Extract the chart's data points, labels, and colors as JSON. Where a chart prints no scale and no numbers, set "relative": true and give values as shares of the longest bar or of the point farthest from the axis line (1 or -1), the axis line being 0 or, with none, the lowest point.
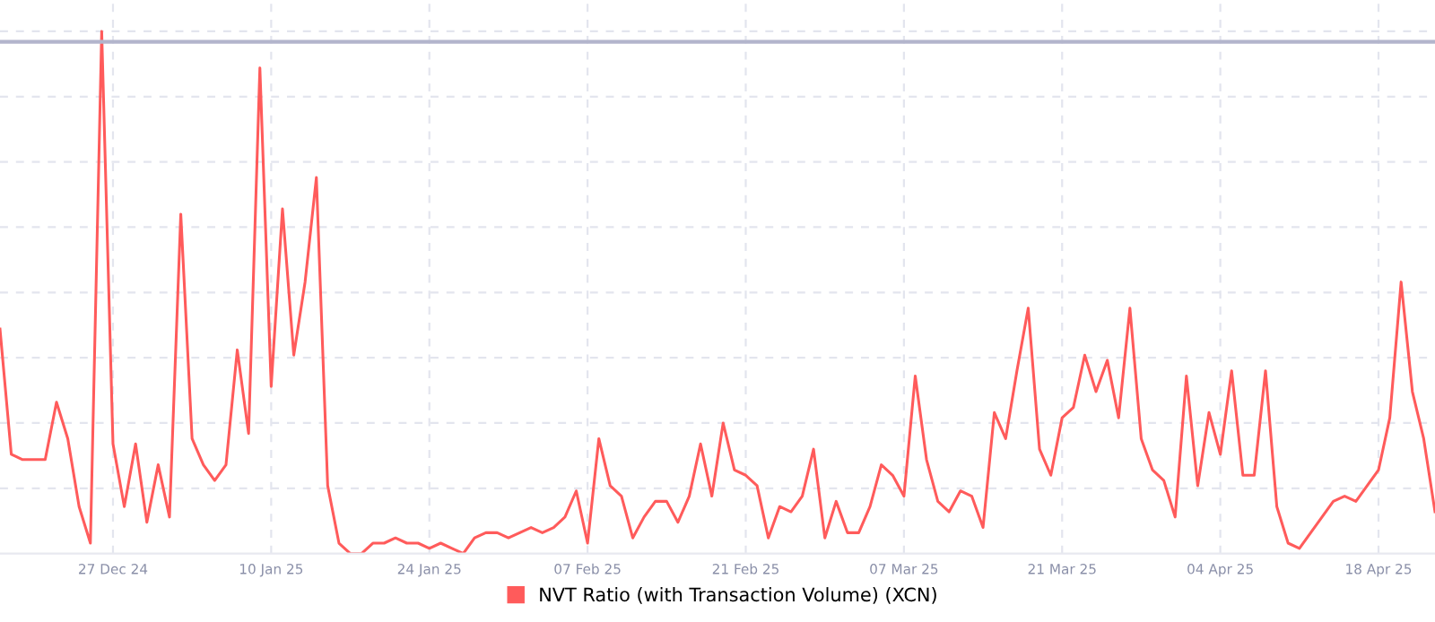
{
  "chart_data": {
    "type": "line",
    "relative": true,
    "grid": true,
    "legend": "bottom",
    "marker": "none",
    "line_style": "solid",
    "x": [
      "2024-12-17",
      "2024-12-18",
      "2024-12-19",
      "2024-12-20",
      "2024-12-21",
      "2024-12-22",
      "2024-12-23",
      "2024-12-24",
      "2024-12-25",
      "2024-12-26",
      "2024-12-27",
      "2024-12-28",
      "2024-12-29",
      "2024-12-30",
      "2024-12-31",
      "2025-01-01",
      "2025-01-02",
      "2025-01-03",
      "2025-01-04",
      "2025-01-05",
      "2025-01-06",
      "2025-01-07",
      "2025-01-08",
      "2025-01-09",
      "2025-01-10",
      "2025-01-11",
      "2025-01-12",
      "2025-01-13",
      "2025-01-14",
      "2025-01-15",
      "2025-01-16",
      "2025-01-17",
      "2025-01-18",
      "2025-01-19",
      "2025-01-20",
      "2025-01-21",
      "2025-01-22",
      "2025-01-23",
      "2025-01-24",
      "2025-01-25",
      "2025-01-26",
      "2025-01-27",
      "2025-01-28",
      "2025-01-29",
      "2025-01-30",
      "2025-01-31",
      "2025-02-01",
      "2025-02-02",
      "2025-02-03",
      "2025-02-04",
      "2025-02-05",
      "2025-02-06",
      "2025-02-07",
      "2025-02-08",
      "2025-02-09",
      "2025-02-10",
      "2025-02-11",
      "2025-02-12",
      "2025-02-13",
      "2025-02-14",
      "2025-02-15",
      "2025-02-16",
      "2025-02-17",
      "2025-02-18",
      "2025-02-19",
      "2025-02-20",
      "2025-02-21",
      "2025-02-22",
      "2025-02-23",
      "2025-02-24",
      "2025-02-25",
      "2025-02-26",
      "2025-02-27",
      "2025-02-28",
      "2025-03-01",
      "2025-03-02",
      "2025-03-03",
      "2025-03-04",
      "2025-03-05",
      "2025-03-06",
      "2025-03-07",
      "2025-03-08",
      "2025-03-09",
      "2025-03-10",
      "2025-03-11",
      "2025-03-12",
      "2025-03-13",
      "2025-03-14",
      "2025-03-15",
      "2025-03-16",
      "2025-03-17",
      "2025-03-18",
      "2025-03-19",
      "2025-03-20",
      "2025-03-21",
      "2025-03-22",
      "2025-03-23",
      "2025-03-24",
      "2025-03-25",
      "2025-03-26",
      "2025-03-27",
      "2025-03-28",
      "2025-03-29",
      "2025-03-30",
      "2025-03-31",
      "2025-04-01",
      "2025-04-02",
      "2025-04-03",
      "2025-04-04",
      "2025-04-05",
      "2025-04-06",
      "2025-04-07",
      "2025-04-08",
      "2025-04-09",
      "2025-04-10",
      "2025-04-11",
      "2025-04-12",
      "2025-04-13",
      "2025-04-14",
      "2025-04-15",
      "2025-04-16",
      "2025-04-17",
      "2025-04-18",
      "2025-04-19",
      "2025-04-20",
      "2025-04-21",
      "2025-04-22",
      "2025-04-23"
    ],
    "xlim": [
      "2024-12-17",
      "2025-04-23"
    ],
    "xticks": [
      {
        "value": "2024-12-27",
        "label": "27 Dec 24"
      },
      {
        "value": "2025-01-10",
        "label": "10 Jan 25"
      },
      {
        "value": "2025-01-24",
        "label": "24 Jan 25"
      },
      {
        "value": "2025-02-07",
        "label": "07 Feb 25"
      },
      {
        "value": "2025-02-21",
        "label": "21 Feb 25"
      },
      {
        "value": "2025-03-07",
        "label": "07 Mar 25"
      },
      {
        "value": "2025-03-21",
        "label": "21 Mar 25"
      },
      {
        "value": "2025-04-04",
        "label": "04 Apr 25"
      },
      {
        "value": "2025-04-18",
        "label": "18 Apr 25"
      }
    ],
    "ref_lines": [
      {
        "axis": "y",
        "value": 0.98,
        "color": "#b3b5cc"
      }
    ],
    "series": [
      {
        "name": "NVT Ratio (with Transaction Volume) (XCN)",
        "color": "#ff5b5b",
        "values": [
          0.43,
          0.19,
          0.18,
          0.18,
          0.18,
          0.29,
          0.22,
          0.09,
          0.02,
          1.0,
          0.21,
          0.09,
          0.21,
          0.06,
          0.17,
          0.07,
          0.65,
          0.22,
          0.17,
          0.14,
          0.17,
          0.39,
          0.23,
          0.93,
          0.32,
          0.66,
          0.38,
          0.52,
          0.72,
          0.13,
          0.02,
          0,
          0,
          0.02,
          0.02,
          0.03,
          0.02,
          0.02,
          0.01,
          0.02,
          0.01,
          0,
          0.03,
          0.04,
          0.04,
          0.03,
          0.04,
          0.05,
          0.04,
          0.05,
          0.07,
          0.12,
          0.02,
          0.22,
          0.13,
          0.11,
          0.03,
          0.07,
          0.1,
          0.1,
          0.06,
          0.11,
          0.21,
          0.11,
          0.25,
          0.16,
          0.15,
          0.13,
          0.03,
          0.09,
          0.08,
          0.11,
          0.2,
          0.03,
          0.1,
          0.04,
          0.04,
          0.09,
          0.17,
          0.15,
          0.11,
          0.34,
          0.18,
          0.1,
          0.08,
          0.12,
          0.11,
          0.05,
          0.27,
          0.22,
          0.35,
          0.47,
          0.2,
          0.15,
          0.26,
          0.28,
          0.38,
          0.31,
          0.37,
          0.26,
          0.47,
          0.22,
          0.16,
          0.14,
          0.07,
          0.34,
          0.13,
          0.27,
          0.19,
          0.35,
          0.15,
          0.15,
          0.35,
          0.09,
          0.02,
          0.01,
          0.04,
          0.07,
          0.1,
          0.11,
          0.1,
          0.13,
          0.16,
          0.26,
          0.52,
          0.31,
          0.22,
          0.08
        ]
      }
    ]
  }
}
